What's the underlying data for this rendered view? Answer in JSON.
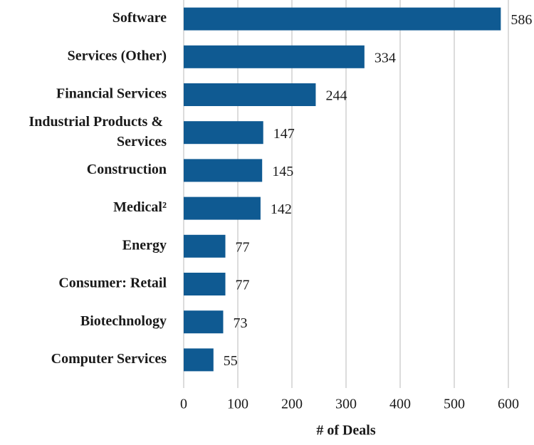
{
  "chart_data": {
    "type": "hbar",
    "categories": [
      "Software",
      "Services (Other)",
      "Financial Services",
      "Industrial Products & Services",
      "Construction",
      "Medical²",
      "Energy",
      "Consumer: Retail",
      "Biotechnology",
      "Computer Services"
    ],
    "values": [
      586,
      334,
      244,
      147,
      145,
      142,
      77,
      77,
      73,
      55
    ],
    "color": "#0f5a92",
    "xlabel": "# of Deals",
    "xlim": [
      0,
      600
    ],
    "xticks": [
      0,
      100,
      200,
      300,
      400,
      500,
      600
    ],
    "grid": true
  }
}
